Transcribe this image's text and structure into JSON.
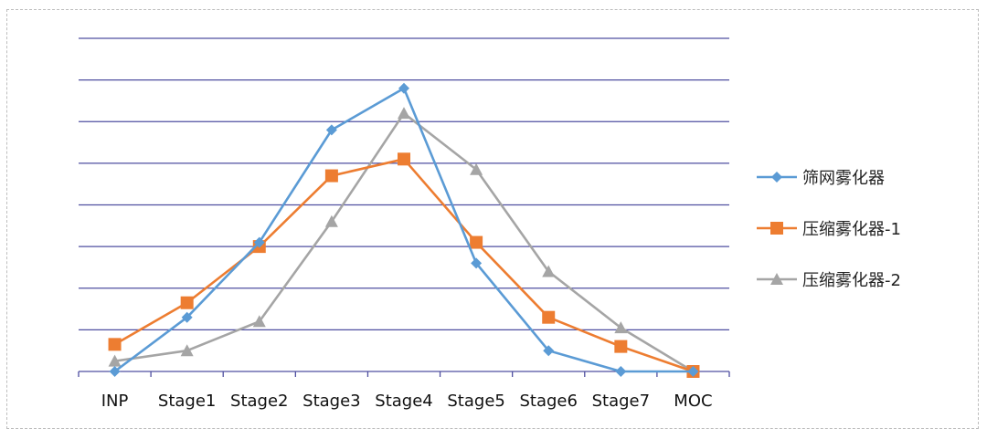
{
  "chart_data": {
    "type": "line",
    "categories": [
      "INP",
      "Stage1",
      "Stage2",
      "Stage3",
      "Stage4",
      "Stage5",
      "Stage6",
      "Stage7",
      "MOC"
    ],
    "ylim": [
      0,
      8
    ],
    "grid": true,
    "legend_position": "right",
    "series": [
      {
        "name": "筛网雾化器",
        "marker": "diamond",
        "color": "#5b9bd5",
        "values": [
          0.0,
          1.3,
          3.1,
          5.8,
          6.8,
          2.6,
          0.5,
          0.0,
          0.0
        ]
      },
      {
        "name": "压缩雾化器-1",
        "marker": "square",
        "color": "#ed7d31",
        "values": [
          0.65,
          1.65,
          3.0,
          4.7,
          5.1,
          3.1,
          1.3,
          0.6,
          0.0
        ]
      },
      {
        "name": "压缩雾化器-2",
        "marker": "triangle",
        "color": "#a5a5a5",
        "values": [
          0.25,
          0.5,
          1.2,
          3.6,
          6.2,
          4.85,
          2.4,
          1.05,
          0.0
        ]
      }
    ]
  }
}
